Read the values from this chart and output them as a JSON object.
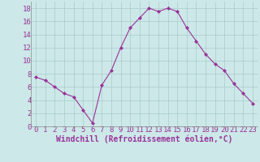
{
  "x": [
    0,
    1,
    2,
    3,
    4,
    5,
    6,
    7,
    8,
    9,
    10,
    11,
    12,
    13,
    14,
    15,
    16,
    17,
    18,
    19,
    20,
    21,
    22,
    23
  ],
  "y": [
    7.5,
    7.0,
    6.0,
    5.0,
    4.5,
    2.5,
    0.5,
    6.3,
    8.5,
    12.0,
    15.0,
    16.5,
    18.0,
    17.5,
    18.0,
    17.5,
    15.0,
    13.0,
    11.0,
    9.5,
    8.5,
    6.5,
    5.0,
    3.5
  ],
  "line_color": "#993399",
  "marker": "D",
  "marker_size": 2,
  "background_color": "#cce8e8",
  "grid_color": "#aacccc",
  "xlabel": "Windchill (Refroidissement éolien,°C)",
  "xlabel_color": "#993399",
  "tick_color": "#993399",
  "ylim": [
    0,
    19
  ],
  "xlim": [
    -0.5,
    23.5
  ],
  "yticks": [
    0,
    2,
    4,
    6,
    8,
    10,
    12,
    14,
    16,
    18
  ],
  "xticks": [
    0,
    1,
    2,
    3,
    4,
    5,
    6,
    7,
    8,
    9,
    10,
    11,
    12,
    13,
    14,
    15,
    16,
    17,
    18,
    19,
    20,
    21,
    22,
    23
  ],
  "tick_fontsize": 6.5,
  "xlabel_fontsize": 7.0,
  "xlabel_fontweight": "bold"
}
